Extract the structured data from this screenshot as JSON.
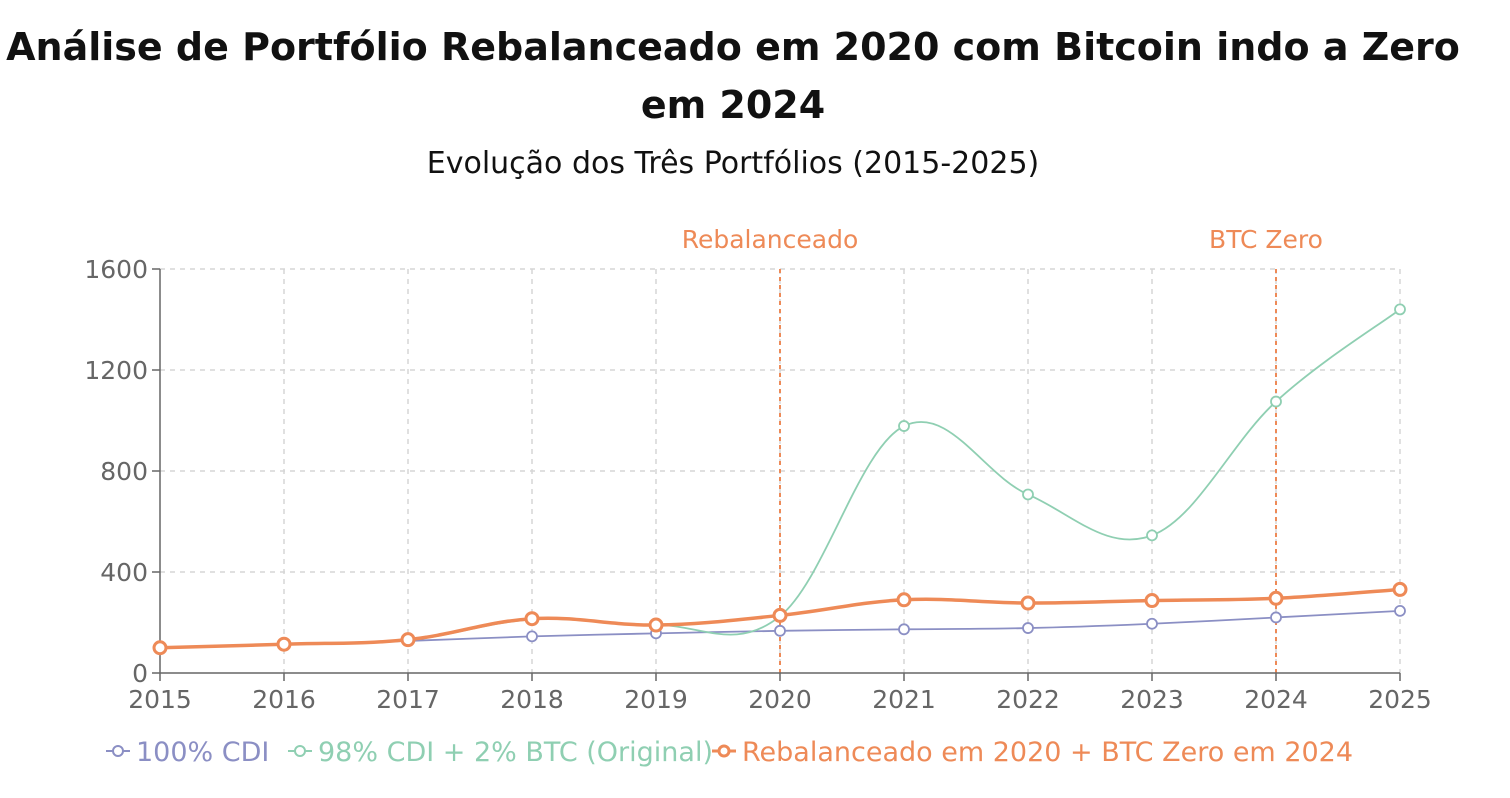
{
  "title": "Análise de Portfólio Rebalanceado em 2020 com Bitcoin indo a Zero em 2024",
  "subtitle": "Evolução dos Três Portfólios (2015-2025)",
  "chart_data": {
    "type": "line",
    "x": [
      "2015",
      "2016",
      "2017",
      "2018",
      "2019",
      "2020",
      "2021",
      "2022",
      "2023",
      "2024",
      "2025"
    ],
    "ylim": [
      0,
      1600
    ],
    "yticks": [
      "0",
      "400",
      "800",
      "1200",
      "1600"
    ],
    "grid": true,
    "legend_position": "bottom",
    "reference_lines": [
      {
        "x": "2020",
        "label": "Rebalanceado",
        "color": "#ee8a57"
      },
      {
        "x": "2024",
        "label": "BTC Zero",
        "color": "#ee8a57"
      }
    ],
    "series": [
      {
        "name": "100% CDI",
        "color": "#8b8fc4",
        "values": [
          100,
          114,
          127,
          145,
          157,
          167,
          173,
          178,
          195,
          220,
          246
        ]
      },
      {
        "name": "98% CDI + 2% BTC (Original)",
        "color": "#8fcfb2",
        "values": [
          100,
          114,
          130,
          212,
          190,
          225,
          978,
          707,
          545,
          1075,
          1440
        ]
      },
      {
        "name": "Rebalanceado em 2020 + BTC Zero em 2024",
        "color": "#ee8a57",
        "values": [
          100,
          114,
          132,
          215,
          190,
          228,
          290,
          277,
          287,
          296,
          331
        ]
      }
    ]
  }
}
